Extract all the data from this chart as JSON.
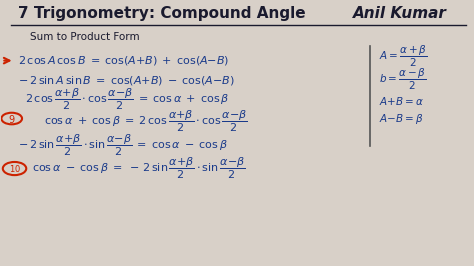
{
  "title": "7 Trigonometry: Compound Angle",
  "author": "Anil Kumar",
  "bg_color": "#d8d0c8",
  "text_color_black": "#1a1a2e",
  "text_color_blue": "#1a3a8a",
  "text_color_red": "#cc2200",
  "subtitle": "Sum to Product Form",
  "figsize": [
    4.74,
    2.66
  ],
  "dpi": 100
}
